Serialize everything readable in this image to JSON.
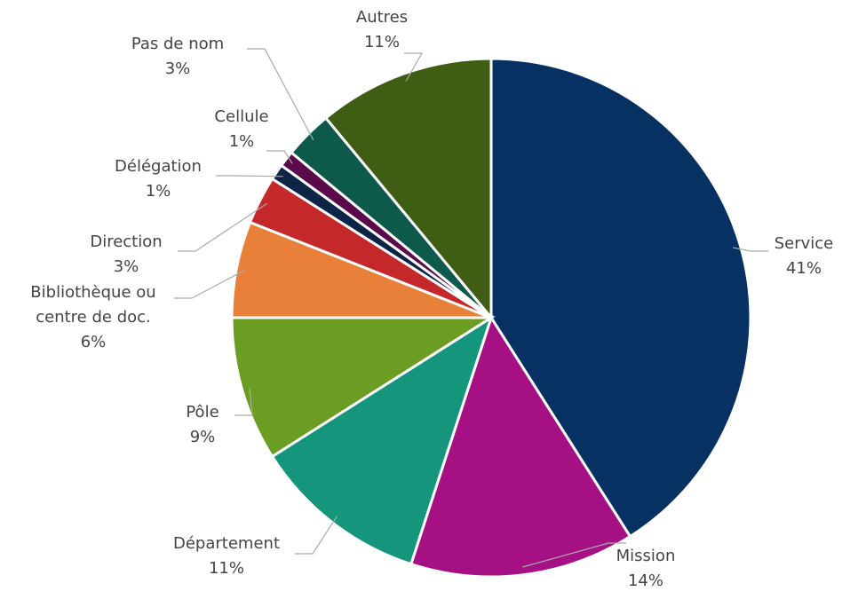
{
  "chart_data": {
    "type": "pie",
    "categories": [
      "Service",
      "Mission",
      "Département",
      "Pôle",
      "Bibliothèque ou centre de doc.",
      "Direction",
      "Délégation",
      "Cellule",
      "Pas de nom",
      "Autres"
    ],
    "values": [
      41,
      14,
      11,
      9,
      6,
      3,
      1,
      1,
      3,
      11
    ],
    "value_labels": [
      "41%",
      "14%",
      "11%",
      "9%",
      "6%",
      "3%",
      "1%",
      "1%",
      "3%",
      "11%"
    ],
    "colors": [
      "#073163",
      "#a51185",
      "#15967c",
      "#6a9d21",
      "#e8803a",
      "#c4282b",
      "#0d2447",
      "#5a0a4a",
      "#0e5a4a",
      "#3f5e14"
    ]
  }
}
